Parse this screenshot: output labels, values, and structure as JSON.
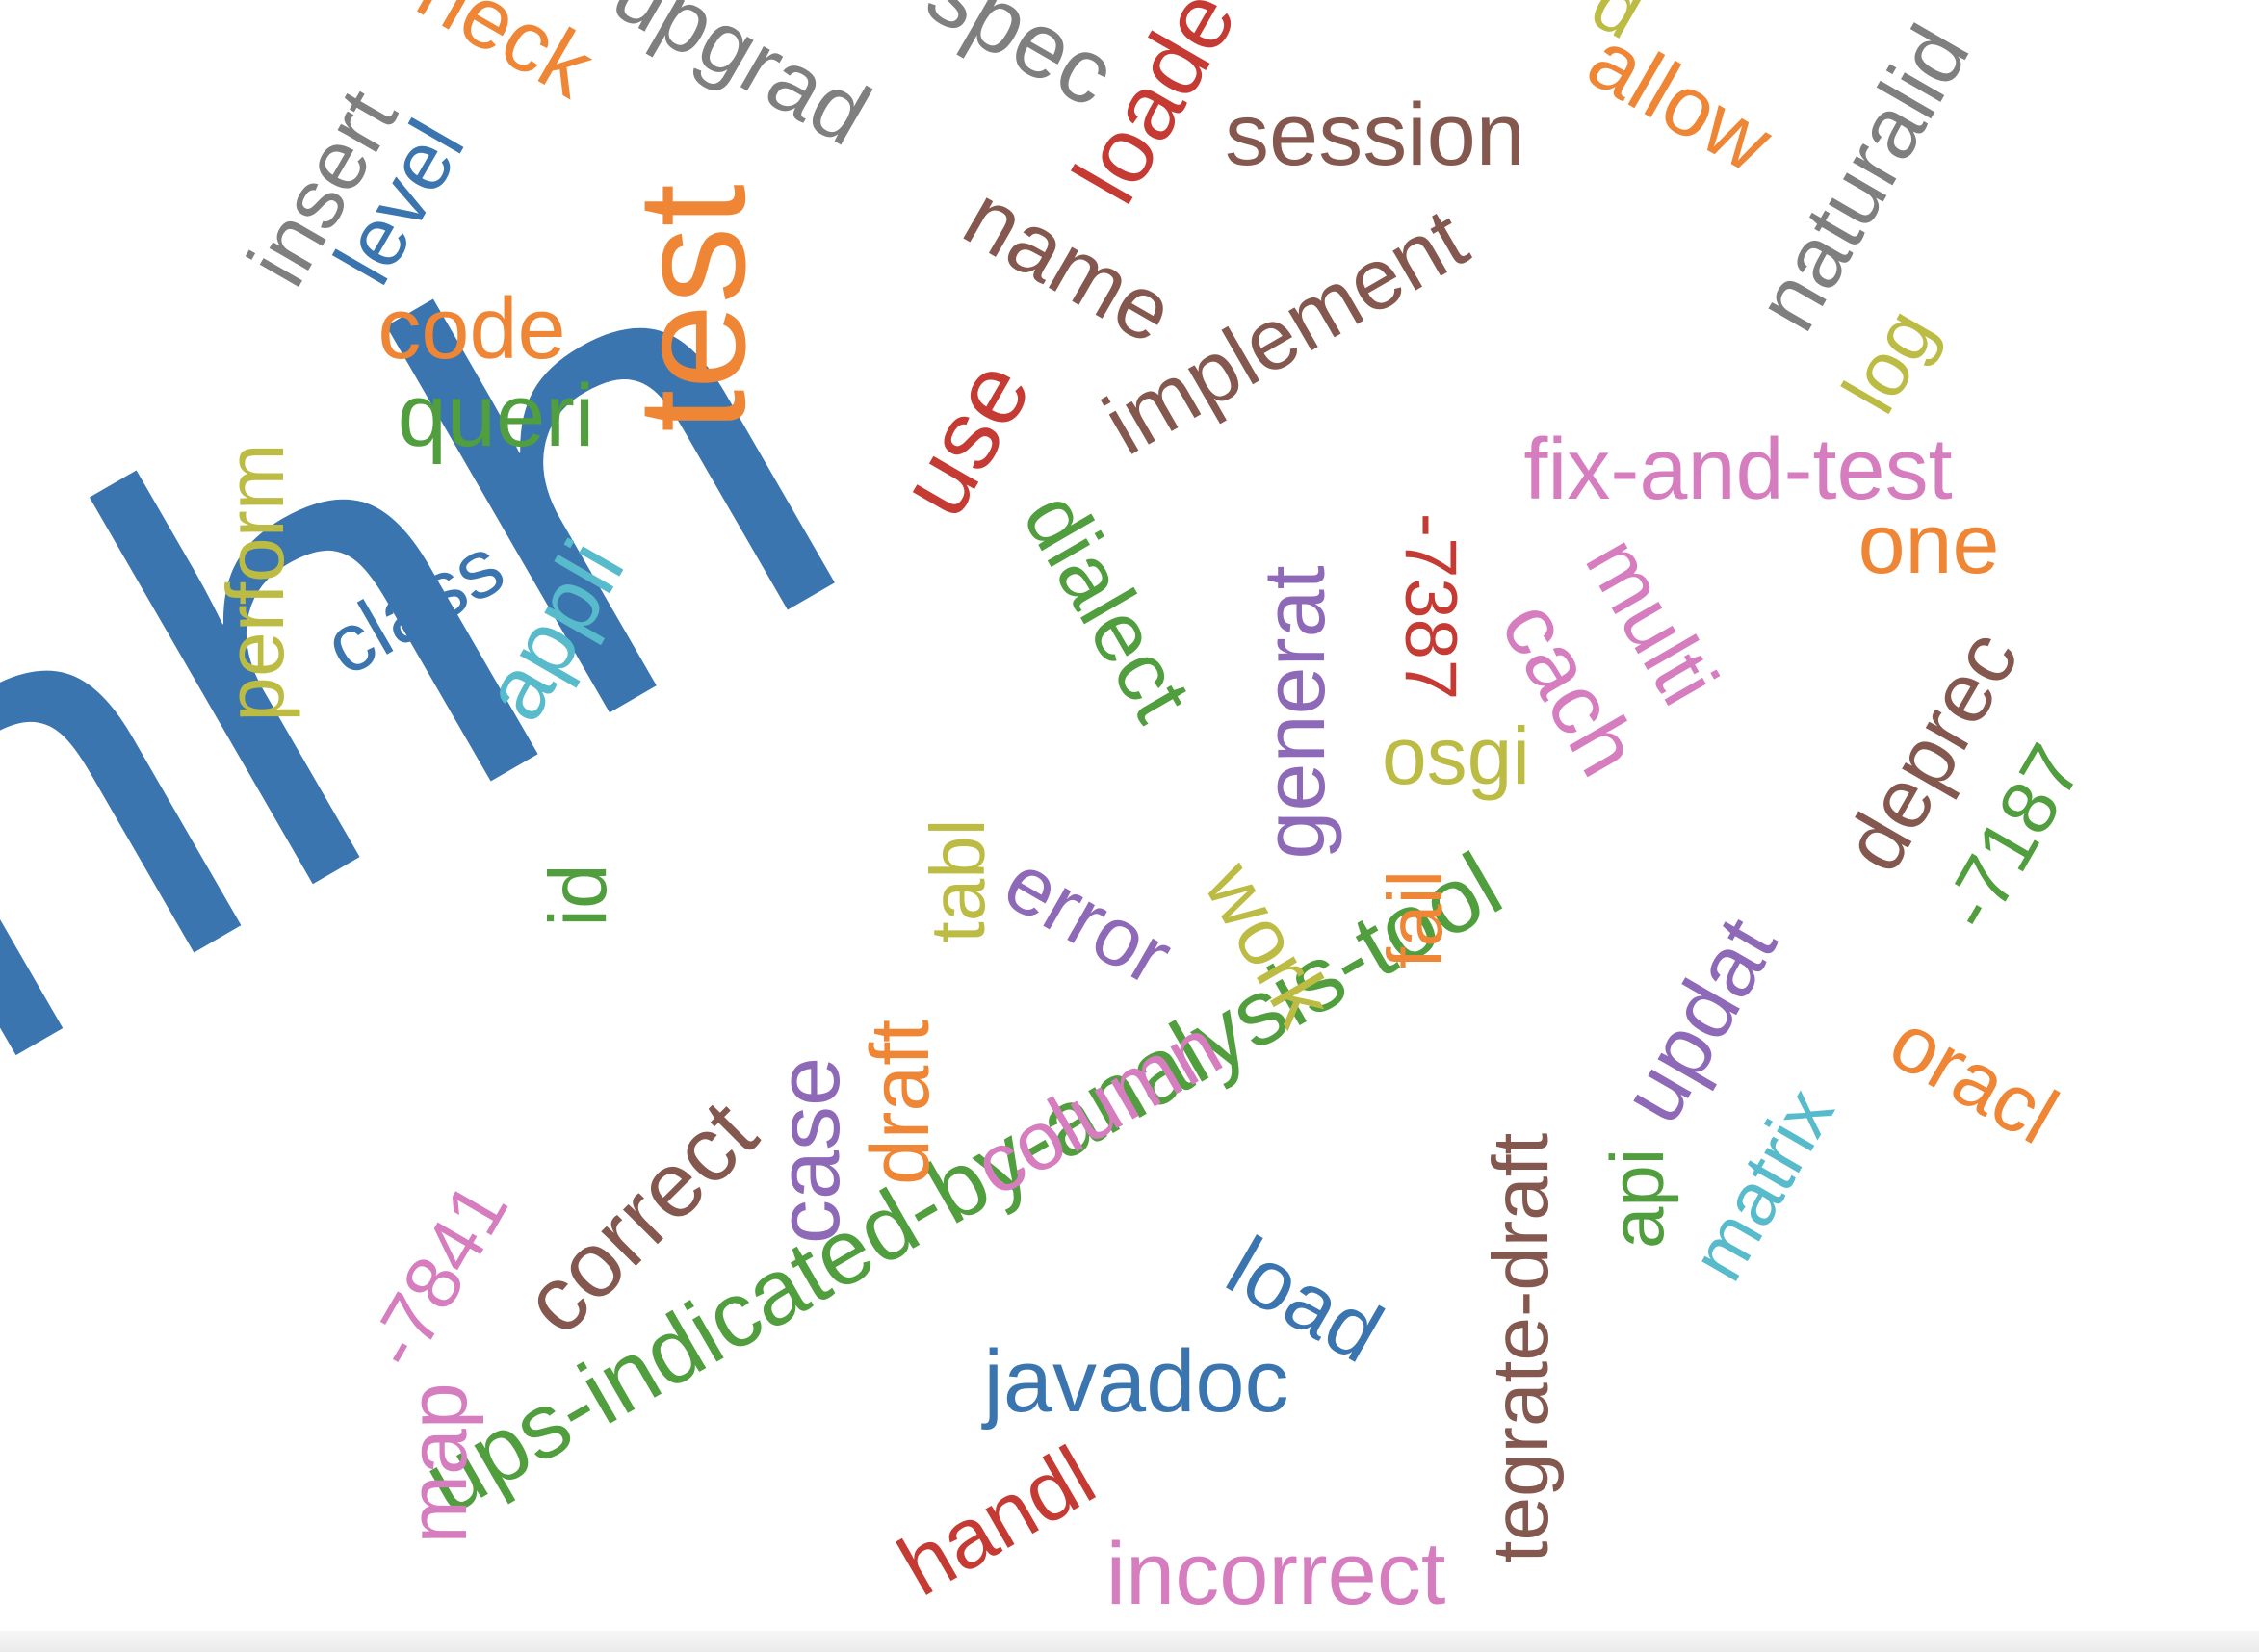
{
  "word_cloud": {
    "palette": {
      "blue": "#3b75af",
      "orange": "#ef8636",
      "green": "#519e3e",
      "red": "#c53a32",
      "purple": "#8d69b8",
      "brown": "#84584e",
      "pink": "#d57dbf",
      "gray": "#7f7f7f",
      "olive": "#bcbc45",
      "cyan": "#58bbcc"
    },
    "words": [
      {
        "text": "hhh",
        "color": "blue"
      },
      {
        "text": "test",
        "color": "orange"
      },
      {
        "text": "ups-indicated-by-analysis-tool",
        "color": "green"
      },
      {
        "text": "correct",
        "color": "brown"
      },
      {
        "text": "implement",
        "color": "brown"
      },
      {
        "text": "session",
        "color": "brown"
      },
      {
        "text": "name",
        "color": "brown"
      },
      {
        "text": "loade",
        "color": "red"
      },
      {
        "text": "spec",
        "color": "gray"
      },
      {
        "text": "upgrad",
        "color": "gray"
      },
      {
        "text": "heck",
        "color": "orange"
      },
      {
        "text": "insert",
        "color": "gray"
      },
      {
        "text": "level",
        "color": "blue"
      },
      {
        "text": "code",
        "color": "orange"
      },
      {
        "text": "queri",
        "color": "green"
      },
      {
        "text": "allow",
        "color": "orange"
      },
      {
        "text": "d",
        "color": "olive"
      },
      {
        "text": "naturalid",
        "color": "gray"
      },
      {
        "text": "log",
        "color": "olive"
      },
      {
        "text": "fix-and-test",
        "color": "pink"
      },
      {
        "text": "one",
        "color": "orange"
      },
      {
        "text": "multi",
        "color": "pink"
      },
      {
        "text": "cach",
        "color": "pink"
      },
      {
        "text": "-7387",
        "color": "red"
      },
      {
        "text": "osgi",
        "color": "olive"
      },
      {
        "text": "generat",
        "color": "purple"
      },
      {
        "text": "use",
        "color": "red"
      },
      {
        "text": "dialect",
        "color": "green"
      },
      {
        "text": "perform",
        "color": "olive"
      },
      {
        "text": "class",
        "color": "blue"
      },
      {
        "text": "appli",
        "color": "cyan"
      },
      {
        "text": "id",
        "color": "green"
      },
      {
        "text": "tabl",
        "color": "olive"
      },
      {
        "text": "error",
        "color": "purple"
      },
      {
        "text": "work",
        "color": "olive"
      },
      {
        "text": "fail",
        "color": "orange"
      },
      {
        "text": "deprec",
        "color": "brown"
      },
      {
        "text": "-7187",
        "color": "green"
      },
      {
        "text": "updat",
        "color": "purple"
      },
      {
        "text": "oracl",
        "color": "orange"
      },
      {
        "text": "matrix",
        "color": "cyan"
      },
      {
        "text": "api",
        "color": "green"
      },
      {
        "text": "tegrate-draft",
        "color": "brown"
      },
      {
        "text": "column",
        "color": "pink"
      },
      {
        "text": "draft",
        "color": "orange"
      },
      {
        "text": "case",
        "color": "purple"
      },
      {
        "text": "-7841",
        "color": "pink"
      },
      {
        "text": "map",
        "color": "pink"
      },
      {
        "text": "load",
        "color": "blue"
      },
      {
        "text": "javadoc",
        "color": "blue"
      },
      {
        "text": "handl",
        "color": "red"
      },
      {
        "text": "incorrect",
        "color": "pink"
      }
    ]
  }
}
